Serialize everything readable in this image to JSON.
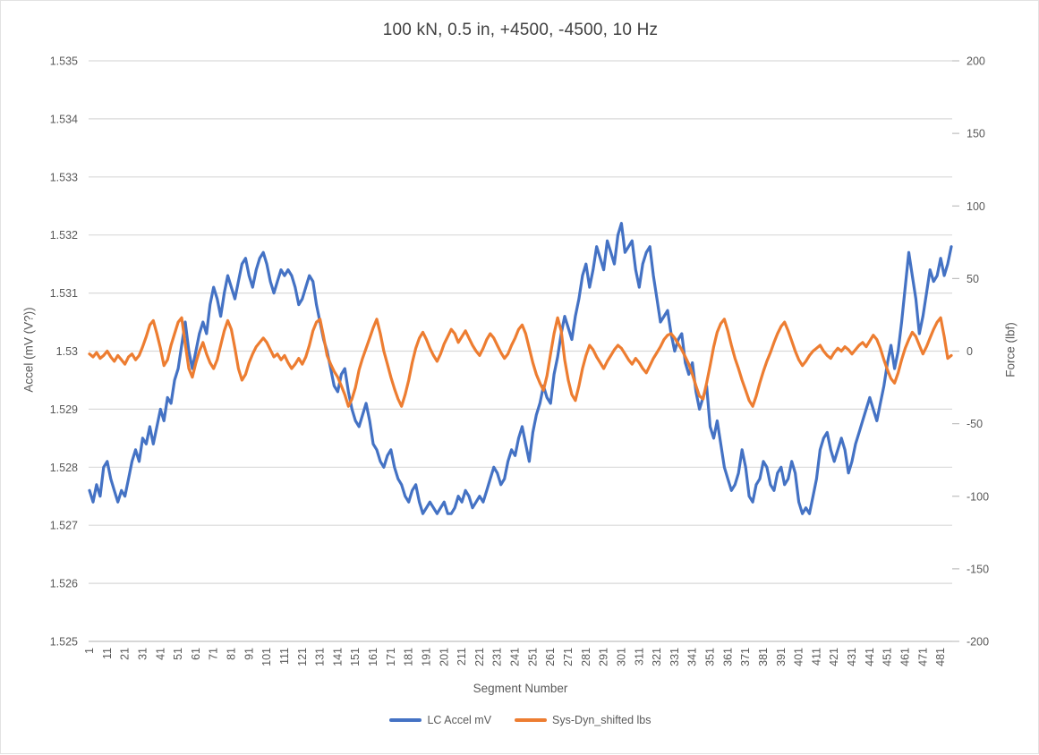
{
  "chart_data": {
    "type": "line",
    "title": "100 kN, 0.5 in, +4500, -4500, 10 Hz",
    "xlabel": "Segment Number",
    "ylabel_left": "Accel (mV (V?))",
    "ylabel_right": "Force (lbf)",
    "x_start": 1,
    "x_step": 2,
    "x_max": 487,
    "x_tick_labels": [
      "1",
      "11",
      "21",
      "31",
      "41",
      "51",
      "61",
      "71",
      "81",
      "91",
      "101",
      "111",
      "121",
      "131",
      "141",
      "151",
      "161",
      "171",
      "181",
      "191",
      "201",
      "211",
      "221",
      "231",
      "241",
      "251",
      "261",
      "271",
      "281",
      "291",
      "301",
      "311",
      "321",
      "331",
      "341",
      "351",
      "361",
      "371",
      "381",
      "391",
      "401",
      "411",
      "421",
      "431",
      "441",
      "451",
      "461",
      "471",
      "481"
    ],
    "x_tick_step": 10,
    "y_left_range": [
      1.525,
      1.535
    ],
    "y_left_tick_labels": [
      "1.535",
      "1.534",
      "1.533",
      "1.532",
      "1.531",
      "1.53",
      "1.529",
      "1.528",
      "1.527",
      "1.526",
      "1.525"
    ],
    "y_right_range": [
      -200,
      200
    ],
    "y_right_tick_labels": [
      "200",
      "150",
      "100",
      "50",
      "0",
      "-50",
      "-100",
      "-150",
      "-200"
    ],
    "grid": "horizontal",
    "legend_position": "bottom",
    "colors": {
      "series1": "#4472C4",
      "series2": "#ED7D31",
      "gridline": "#D9D9D9",
      "axis_line": "#BFBFBF",
      "tick_text": "#595959",
      "title_text": "#404040"
    },
    "series": [
      {
        "name": "LC Accel mV",
        "axis": "left",
        "color": "#4472C4",
        "values": [
          1.5276,
          1.5274,
          1.5277,
          1.5275,
          1.528,
          1.5281,
          1.5278,
          1.5276,
          1.5274,
          1.5276,
          1.5275,
          1.5278,
          1.5281,
          1.5283,
          1.5281,
          1.5285,
          1.5284,
          1.5287,
          1.5284,
          1.5287,
          1.529,
          1.5288,
          1.5292,
          1.5291,
          1.5295,
          1.5297,
          1.5301,
          1.5305,
          1.53,
          1.5297,
          1.53,
          1.5303,
          1.5305,
          1.5303,
          1.5308,
          1.5311,
          1.5309,
          1.5306,
          1.531,
          1.5313,
          1.5311,
          1.5309,
          1.5312,
          1.5315,
          1.5316,
          1.5313,
          1.5311,
          1.5314,
          1.5316,
          1.5317,
          1.5315,
          1.5312,
          1.531,
          1.5312,
          1.5314,
          1.5313,
          1.5314,
          1.5313,
          1.5311,
          1.5308,
          1.5309,
          1.5311,
          1.5313,
          1.5312,
          1.5308,
          1.5305,
          1.5302,
          1.53,
          1.5297,
          1.5294,
          1.5293,
          1.5296,
          1.5297,
          1.5293,
          1.529,
          1.5288,
          1.5287,
          1.5289,
          1.5291,
          1.5288,
          1.5284,
          1.5283,
          1.5281,
          1.528,
          1.5282,
          1.5283,
          1.528,
          1.5278,
          1.5277,
          1.5275,
          1.5274,
          1.5276,
          1.5277,
          1.5274,
          1.5272,
          1.5273,
          1.5274,
          1.5273,
          1.5272,
          1.5273,
          1.5274,
          1.5272,
          1.5272,
          1.5273,
          1.5275,
          1.5274,
          1.5276,
          1.5275,
          1.5273,
          1.5274,
          1.5275,
          1.5274,
          1.5276,
          1.5278,
          1.528,
          1.5279,
          1.5277,
          1.5278,
          1.5281,
          1.5283,
          1.5282,
          1.5285,
          1.5287,
          1.5284,
          1.5281,
          1.5286,
          1.5289,
          1.5291,
          1.5294,
          1.5292,
          1.5291,
          1.5296,
          1.5299,
          1.5303,
          1.5306,
          1.5304,
          1.5302,
          1.5306,
          1.5309,
          1.5313,
          1.5315,
          1.5311,
          1.5314,
          1.5318,
          1.5316,
          1.5314,
          1.5319,
          1.5317,
          1.5315,
          1.532,
          1.5322,
          1.5317,
          1.5318,
          1.5319,
          1.5314,
          1.5311,
          1.5315,
          1.5317,
          1.5318,
          1.5313,
          1.5309,
          1.5305,
          1.5306,
          1.5307,
          1.5303,
          1.53,
          1.5302,
          1.5303,
          1.5298,
          1.5296,
          1.5298,
          1.5293,
          1.529,
          1.5292,
          1.5294,
          1.5287,
          1.5285,
          1.5288,
          1.5284,
          1.528,
          1.5278,
          1.5276,
          1.5277,
          1.5279,
          1.5283,
          1.528,
          1.5275,
          1.5274,
          1.5277,
          1.5278,
          1.5281,
          1.528,
          1.5277,
          1.5276,
          1.5279,
          1.528,
          1.5277,
          1.5278,
          1.5281,
          1.5279,
          1.5274,
          1.5272,
          1.5273,
          1.5272,
          1.5275,
          1.5278,
          1.5283,
          1.5285,
          1.5286,
          1.5283,
          1.5281,
          1.5283,
          1.5285,
          1.5283,
          1.5279,
          1.5281,
          1.5284,
          1.5286,
          1.5288,
          1.529,
          1.5292,
          1.529,
          1.5288,
          1.5291,
          1.5294,
          1.5298,
          1.5301,
          1.5297,
          1.53,
          1.5305,
          1.5311,
          1.5317,
          1.5313,
          1.5309,
          1.5303,
          1.5306,
          1.531,
          1.5314,
          1.5312,
          1.5313,
          1.5316,
          1.5313,
          1.5315,
          1.5318
        ]
      },
      {
        "name": "Sys-Dyn_shifted lbs",
        "axis": "right",
        "color": "#ED7D31",
        "values": [
          -2,
          -4,
          -1,
          -5,
          -3,
          0,
          -4,
          -7,
          -3,
          -6,
          -9,
          -4,
          -2,
          -6,
          -3,
          3,
          10,
          18,
          21,
          12,
          2,
          -10,
          -6,
          4,
          12,
          20,
          23,
          5,
          -12,
          -18,
          -8,
          0,
          6,
          -2,
          -8,
          -12,
          -6,
          4,
          14,
          21,
          15,
          2,
          -12,
          -20,
          -16,
          -8,
          -2,
          3,
          6,
          9,
          6,
          1,
          -4,
          -2,
          -6,
          -3,
          -8,
          -12,
          -9,
          -5,
          -9,
          -4,
          4,
          14,
          20,
          22,
          10,
          -3,
          -9,
          -14,
          -18,
          -24,
          -30,
          -38,
          -33,
          -25,
          -13,
          -5,
          2,
          9,
          16,
          22,
          12,
          0,
          -9,
          -18,
          -26,
          -33,
          -38,
          -30,
          -20,
          -8,
          2,
          9,
          13,
          8,
          2,
          -3,
          -7,
          -2,
          5,
          10,
          15,
          12,
          6,
          10,
          14,
          9,
          4,
          0,
          -3,
          2,
          8,
          12,
          9,
          4,
          -1,
          -5,
          -2,
          4,
          9,
          15,
          18,
          12,
          2,
          -8,
          -16,
          -22,
          -27,
          -17,
          -2,
          12,
          23,
          14,
          -6,
          -20,
          -30,
          -34,
          -24,
          -12,
          -3,
          4,
          1,
          -4,
          -8,
          -12,
          -7,
          -3,
          1,
          4,
          2,
          -2,
          -6,
          -9,
          -5,
          -8,
          -12,
          -15,
          -10,
          -5,
          -1,
          3,
          8,
          11,
          12,
          9,
          5,
          1,
          -4,
          -9,
          -16,
          -24,
          -31,
          -33,
          -22,
          -10,
          3,
          13,
          19,
          22,
          14,
          4,
          -5,
          -12,
          -20,
          -27,
          -34,
          -38,
          -31,
          -22,
          -14,
          -7,
          -1,
          6,
          12,
          17,
          20,
          14,
          7,
          0,
          -6,
          -10,
          -7,
          -3,
          0,
          2,
          4,
          0,
          -3,
          -5,
          -1,
          2,
          0,
          3,
          1,
          -2,
          1,
          4,
          6,
          3,
          7,
          11,
          8,
          2,
          -6,
          -13,
          -19,
          -22,
          -15,
          -6,
          2,
          8,
          13,
          10,
          4,
          -2,
          3,
          9,
          15,
          20,
          23,
          10,
          -5,
          -3
        ]
      }
    ]
  }
}
